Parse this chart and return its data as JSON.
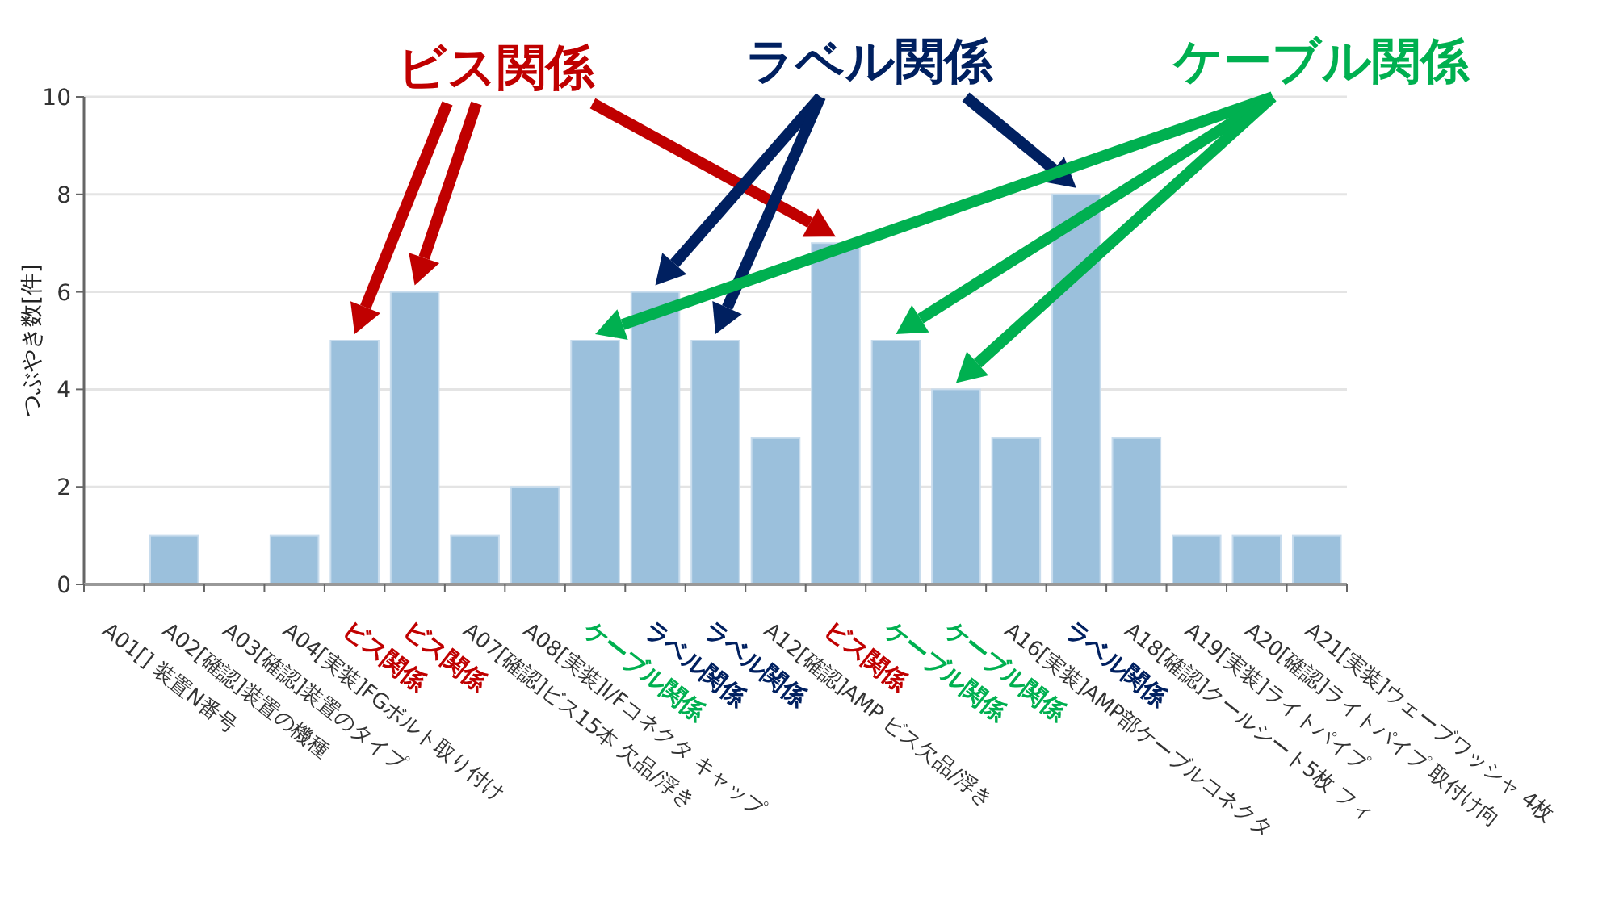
{
  "chart_data": {
    "type": "bar",
    "ylabel": "つぶやき数[件]",
    "categories": [
      "A01[] 装置N番号",
      "A02[確認]装置の機種",
      "A03[確認]装置のタイプ",
      "A04[実装]FGボルト取り付け",
      "ビス関係",
      "ビス関係",
      "A07[確認]ビス15本 欠品/浮き",
      "A08[実装]I/Fコネクタ キャップ",
      "ケーブル関係",
      "ラベル関係",
      "ラベル関係",
      "A12[確認]AMP ビス欠品/浮き",
      "ビス関係",
      "ケーブル関係",
      "ケーブル関係",
      "A16[実装]AMP部ケーブルコネクタ",
      "ラベル関係",
      "A18[確認]クールシート5枚 フィ",
      "A19[実装]ライトパイプ",
      "A20[確認]ライトパイプ 取付け向",
      "A21[実装]ウェーブワッシャ 4枚"
    ],
    "values": [
      0,
      1,
      0,
      1,
      5,
      6,
      1,
      2,
      5,
      6,
      5,
      3,
      7,
      5,
      4,
      3,
      8,
      3,
      1,
      1,
      1
    ],
    "color": "#9bc0dc",
    "ylim": [
      0,
      10
    ],
    "yticks": [
      0,
      2,
      4,
      6,
      8,
      10
    ],
    "grid": "y",
    "annotations": [
      "ビス関係",
      "ラベル関係",
      "ケーブル関係"
    ]
  }
}
